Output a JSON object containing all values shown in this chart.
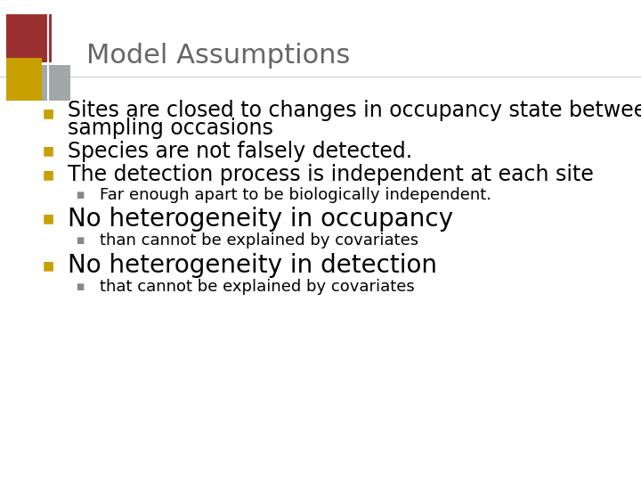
{
  "title": "Model Assumptions",
  "title_color": "#666666",
  "title_fontsize": 22,
  "background_color": "#ffffff",
  "bullet_color": "#C8A000",
  "subbullet_color": "#888888",
  "bullet_fontsize": 17,
  "subbullet_fontsize": 13,
  "large_bullet_fontsize": 20,
  "bullet1a": "Sites are closed to changes in occupancy state between",
  "bullet1b": "sampling occasions",
  "bullet2": "Species are not falsely detected.",
  "bullet3": "The detection process is independent at each site",
  "sub3": "Far enough apart to be biologically independent.",
  "bullet4": "No heterogeneity in occupancy",
  "sub4": "than cannot be explained by covariates",
  "bullet5": "No heterogeneity in detection",
  "sub5": "that cannot be explained by covariates",
  "logo_colors": {
    "red": "#9B3030",
    "gold": "#C8A000",
    "silver": "#A0A8A8"
  }
}
